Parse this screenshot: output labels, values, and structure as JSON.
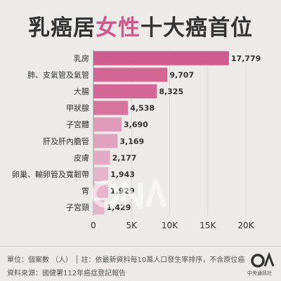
{
  "title_plain_1": "乳癌居",
  "title_highlight": "女性",
  "title_plain_2": "十大癌首位",
  "accent_color": "#d2588c",
  "footer": {
    "line1": "單位：個案數 （人） │ 註：依最新資料每10萬人口發生率排序，不含原位癌",
    "line2": "資料來源：國健署112年癌症登記報告"
  },
  "logo": {
    "mark": "C",
    "brand": "中央通訊社"
  },
  "chart_data": {
    "type": "bar",
    "orientation": "horizontal",
    "categories": [
      "乳房",
      "肺、支氣管及氣管",
      "大腸",
      "甲狀腺",
      "子宮體",
      "肝及肝內膽管",
      "皮膚",
      "卵巢、輸卵管及寬韌帶",
      "胃",
      "子宮頸"
    ],
    "values": [
      17779,
      9707,
      8325,
      4538,
      3690,
      3169,
      2177,
      1943,
      1929,
      1429
    ],
    "value_labels": [
      "17,779",
      "9,707",
      "8,325",
      "4,538",
      "3,690",
      "3,169",
      "2,177",
      "1,943",
      "1,929",
      "1,429"
    ],
    "colors": [
      "#cf5a8c",
      "#d26794",
      "#d26794",
      "#d6749c",
      "#dd9bb7",
      "#dfa3bd",
      "#e2abc3",
      "#e5b5ca",
      "#e5b5ca",
      "#e5b5ca"
    ],
    "xticks": [
      0,
      5000,
      10000,
      15000,
      20000
    ],
    "xtick_labels": [
      "0",
      "5K",
      "10K",
      "15K",
      "20K"
    ],
    "xlim": [
      0,
      20000
    ],
    "grid": true,
    "title": "乳癌居女性十大癌首位",
    "xlabel": "",
    "ylabel": ""
  }
}
